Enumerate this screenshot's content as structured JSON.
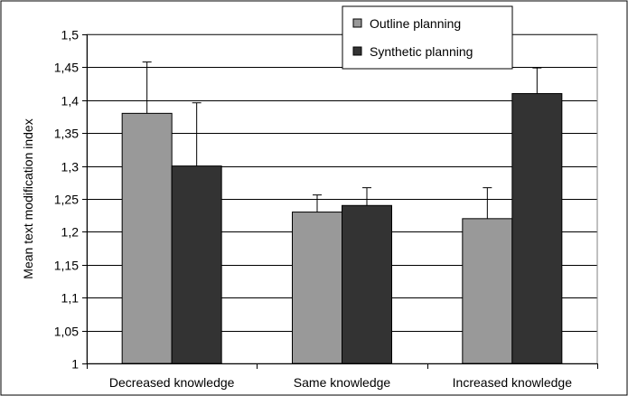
{
  "chart_data": {
    "type": "bar",
    "title": "",
    "xlabel": "",
    "ylabel": "Mean text modification index",
    "ylim": [
      1,
      1.5
    ],
    "yticks": [
      "1",
      "1,05",
      "1,1",
      "1,15",
      "1,2",
      "1,25",
      "1,3",
      "1,35",
      "1,4",
      "1,45",
      "1,5"
    ],
    "categories": [
      "Decreased knowledge",
      "Same knowledge",
      "Increased knowledge"
    ],
    "series": [
      {
        "name": "Outline planning",
        "values": [
          1.38,
          1.23,
          1.22
        ],
        "error": [
          0.078,
          0.026,
          0.047
        ],
        "color": "#999999"
      },
      {
        "name": "Synthetic planning",
        "values": [
          1.3,
          1.24,
          1.41
        ],
        "error": [
          0.096,
          0.027,
          0.039
        ],
        "color": "#333333"
      }
    ],
    "grid": true,
    "legend_position": "top-right"
  }
}
